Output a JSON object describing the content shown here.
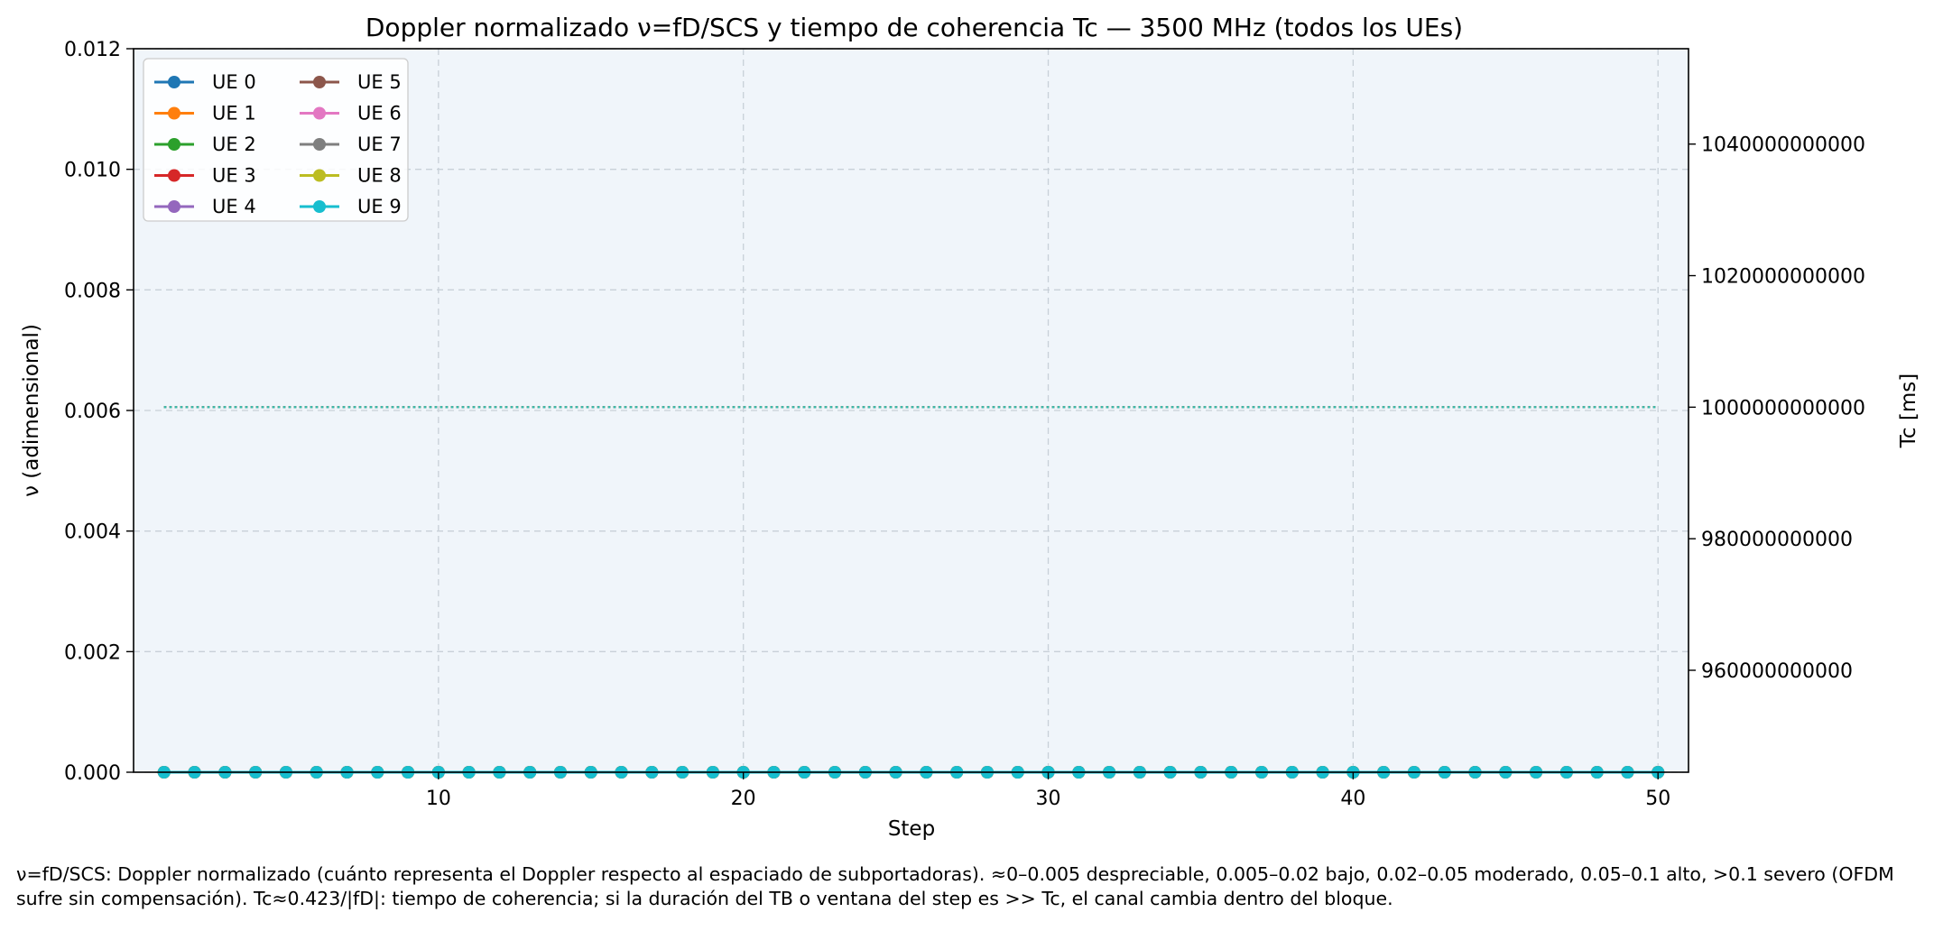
{
  "chart_data": {
    "type": "line",
    "title": "Doppler normalizado ν=fD/SCS y tiempo de coherencia Tc — 3500 MHz (todos los UEs)",
    "xlabel": "Step",
    "ylabel": "ν (adimensional)",
    "y2label": "Tc [ms]",
    "xlim": [
      0,
      51
    ],
    "ylim": [
      0,
      0.012
    ],
    "y2lim": [
      944500000000,
      1054500000000
    ],
    "xticks": [
      10,
      20,
      30,
      40,
      50
    ],
    "yticks": [
      "0.000",
      "0.002",
      "0.004",
      "0.006",
      "0.008",
      "0.010",
      "0.012"
    ],
    "y2ticks": [
      "960000000000",
      "980000000000",
      "1000000000000",
      "1020000000000",
      "1040000000000"
    ],
    "y2tick_values": [
      960000000000,
      980000000000,
      1000000000000,
      1020000000000,
      1040000000000
    ],
    "grid": true,
    "legend_position": "top-left",
    "x": [
      1,
      2,
      3,
      4,
      5,
      6,
      7,
      8,
      9,
      10,
      11,
      12,
      13,
      14,
      15,
      16,
      17,
      18,
      19,
      20,
      21,
      22,
      23,
      24,
      25,
      26,
      27,
      28,
      29,
      30,
      31,
      32,
      33,
      34,
      35,
      36,
      37,
      38,
      39,
      40,
      41,
      42,
      43,
      44,
      45,
      46,
      47,
      48,
      49,
      50
    ],
    "series": [
      {
        "name": "UE 0",
        "color": "#1f77b4",
        "nu_value": 0,
        "tc_value": 1000000000000
      },
      {
        "name": "UE 1",
        "color": "#ff7f0e",
        "nu_value": 0,
        "tc_value": 1000000000000
      },
      {
        "name": "UE 2",
        "color": "#2ca02c",
        "nu_value": 0,
        "tc_value": 1000000000000
      },
      {
        "name": "UE 3",
        "color": "#d62728",
        "nu_value": 0,
        "tc_value": 1000000000000
      },
      {
        "name": "UE 4",
        "color": "#9467bd",
        "nu_value": 0,
        "tc_value": 1000000000000
      },
      {
        "name": "UE 5",
        "color": "#8c564b",
        "nu_value": 0,
        "tc_value": 1000000000000
      },
      {
        "name": "UE 6",
        "color": "#e377c2",
        "nu_value": 0,
        "tc_value": 1000000000000
      },
      {
        "name": "UE 7",
        "color": "#7f7f7f",
        "nu_value": 0,
        "tc_value": 1000000000000
      },
      {
        "name": "UE 8",
        "color": "#bcbd22",
        "nu_value": 0,
        "tc_value": 1000000000000
      },
      {
        "name": "UE 9",
        "color": "#17becf",
        "nu_value": 0,
        "tc_value": 1000000000000
      }
    ]
  },
  "caption": "ν=fD/SCS: Doppler normalizado (cuánto representa el Doppler respecto al espaciado de subportadoras). ≈0–0.005 despreciable, 0.005–0.02 bajo, 0.02–0.05 moderado, 0.05–0.1 alto, >0.1 severo (OFDM sufre sin compensación). Tc≈0.423/|fD|: tiempo de coherencia; si la duración del TB o ventana del step es >> Tc, el canal cambia dentro del bloque.",
  "colors": {
    "plot_background": "#f0f5fa",
    "grid": "#c8d0d8"
  }
}
